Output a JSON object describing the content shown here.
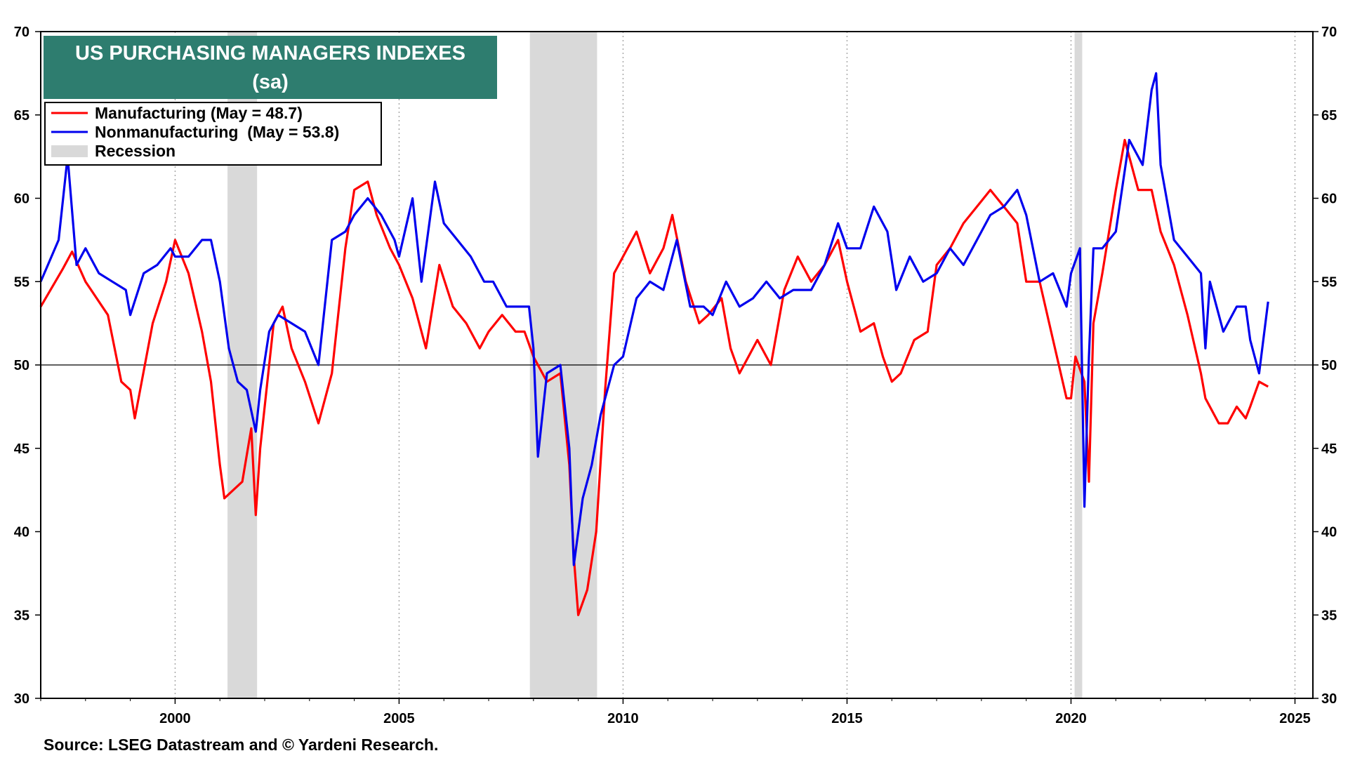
{
  "chart_data": {
    "type": "line",
    "title": "US PURCHASING MANAGERS INDEXES",
    "subtitle": "(sa)",
    "source": "Source: LSEG Datastream and © Yardeni Research.",
    "xlim": [
      1997.0,
      2025.4
    ],
    "ylim": [
      30,
      70
    ],
    "y_ticks": [
      30,
      35,
      40,
      45,
      50,
      55,
      60,
      65,
      70
    ],
    "y_tick_labels": [
      "30",
      "35",
      "40",
      "45",
      "50",
      "55",
      "60",
      "65",
      "70"
    ],
    "x_ticks": [
      2000,
      2005,
      2010,
      2015,
      2020,
      2025
    ],
    "x_tick_labels": [
      "2000",
      "2005",
      "2010",
      "2015",
      "2020",
      "2025"
    ],
    "reference_line": 50,
    "recessions": [
      [
        2001.17,
        2001.83
      ],
      [
        2007.92,
        2009.42
      ],
      [
        2020.08,
        2020.25
      ]
    ],
    "grid": "vertical dotted at x ticks",
    "legend_position": "top-left",
    "legend": {
      "recession_label": "Recession",
      "recession_color": "#d9d9d9"
    },
    "colors": {
      "title_bg": "#2e7d6f",
      "frame": "#000000"
    },
    "series": [
      {
        "name": "Manufacturing (May = 48.7)",
        "color": "#ff0000",
        "x": [
          1997.0,
          1997.5,
          1997.7,
          1998.0,
          1998.5,
          1998.8,
          1999.0,
          1999.1,
          1999.5,
          1999.8,
          2000.0,
          2000.3,
          2000.6,
          2000.8,
          2001.0,
          2001.1,
          2001.3,
          2001.5,
          2001.7,
          2001.8,
          2001.9,
          2002.2,
          2002.4,
          2002.6,
          2002.9,
          2003.2,
          2003.5,
          2003.8,
          2004.0,
          2004.3,
          2004.5,
          2004.8,
          2005.0,
          2005.3,
          2005.6,
          2005.9,
          2006.2,
          2006.5,
          2006.8,
          2007.0,
          2007.3,
          2007.6,
          2007.8,
          2008.0,
          2008.3,
          2008.6,
          2008.8,
          2008.9,
          2009.0,
          2009.2,
          2009.4,
          2009.6,
          2009.8,
          2010.0,
          2010.3,
          2010.6,
          2010.9,
          2011.1,
          2011.4,
          2011.7,
          2011.9,
          2012.2,
          2012.4,
          2012.6,
          2012.8,
          2013.0,
          2013.3,
          2013.6,
          2013.9,
          2014.2,
          2014.5,
          2014.8,
          2015.0,
          2015.3,
          2015.6,
          2015.8,
          2016.0,
          2016.2,
          2016.5,
          2016.8,
          2017.0,
          2017.3,
          2017.6,
          2017.9,
          2018.2,
          2018.5,
          2018.8,
          2019.0,
          2019.3,
          2019.6,
          2019.9,
          2020.0,
          2020.1,
          2020.3,
          2020.4,
          2020.5,
          2020.7,
          2021.0,
          2021.2,
          2021.5,
          2021.8,
          2022.0,
          2022.3,
          2022.6,
          2022.9,
          2023.0,
          2023.3,
          2023.5,
          2023.7,
          2023.9,
          2024.0,
          2024.2,
          2024.4
        ],
        "y": [
          53.5,
          55.8,
          56.8,
          55.0,
          53.0,
          49.0,
          48.5,
          46.8,
          52.5,
          55.0,
          57.5,
          55.5,
          52.0,
          49.0,
          44.0,
          42.0,
          42.5,
          43.0,
          46.2,
          41.0,
          45.0,
          52.5,
          53.5,
          51.0,
          49.0,
          46.5,
          49.5,
          57.0,
          60.5,
          61.0,
          59.0,
          57.0,
          56.0,
          54.0,
          51.0,
          56.0,
          53.5,
          52.5,
          51.0,
          52.0,
          53.0,
          52.0,
          52.0,
          50.5,
          49.0,
          49.5,
          44.0,
          38.5,
          35.0,
          36.5,
          40.0,
          48.5,
          55.5,
          56.5,
          58.0,
          55.5,
          57.0,
          59.0,
          55.0,
          52.5,
          53.0,
          54.0,
          51.0,
          49.5,
          50.5,
          51.5,
          50.0,
          54.5,
          56.5,
          55.0,
          56.0,
          57.5,
          55.0,
          52.0,
          52.5,
          50.5,
          49.0,
          49.5,
          51.5,
          52.0,
          56.0,
          57.0,
          58.5,
          59.5,
          60.5,
          59.5,
          58.5,
          55.0,
          55.0,
          51.5,
          48.0,
          48.0,
          50.5,
          49.0,
          43.0,
          52.5,
          55.5,
          60.5,
          63.5,
          60.5,
          60.5,
          58.0,
          56.0,
          53.0,
          49.5,
          48.0,
          46.5,
          46.5,
          47.5,
          46.8,
          47.5,
          49.0,
          48.7
        ]
      },
      {
        "name": "Nonmanufacturing  (May = 53.8)",
        "color": "#0000ee",
        "x": [
          1997.0,
          1997.4,
          1997.6,
          1997.8,
          1998.0,
          1998.3,
          1998.6,
          1998.9,
          1999.0,
          1999.3,
          1999.6,
          1999.9,
          2000.0,
          2000.3,
          2000.6,
          2000.8,
          2001.0,
          2001.2,
          2001.4,
          2001.6,
          2001.8,
          2001.9,
          2002.1,
          2002.3,
          2002.6,
          2002.9,
          2003.2,
          2003.5,
          2003.8,
          2004.0,
          2004.3,
          2004.6,
          2004.9,
          2005.0,
          2005.3,
          2005.5,
          2005.8,
          2006.0,
          2006.3,
          2006.6,
          2006.9,
          2007.1,
          2007.4,
          2007.7,
          2007.9,
          2008.0,
          2008.1,
          2008.3,
          2008.6,
          2008.8,
          2008.9,
          2009.1,
          2009.3,
          2009.5,
          2009.8,
          2010.0,
          2010.3,
          2010.6,
          2010.9,
          2011.2,
          2011.5,
          2011.8,
          2012.0,
          2012.3,
          2012.6,
          2012.9,
          2013.2,
          2013.5,
          2013.8,
          2014.2,
          2014.5,
          2014.8,
          2015.0,
          2015.3,
          2015.6,
          2015.9,
          2016.1,
          2016.4,
          2016.7,
          2017.0,
          2017.3,
          2017.6,
          2017.9,
          2018.2,
          2018.5,
          2018.8,
          2019.0,
          2019.3,
          2019.6,
          2019.9,
          2020.0,
          2020.2,
          2020.3,
          2020.4,
          2020.5,
          2020.7,
          2021.0,
          2021.3,
          2021.6,
          2021.8,
          2021.9,
          2022.0,
          2022.3,
          2022.6,
          2022.9,
          2023.0,
          2023.1,
          2023.4,
          2023.7,
          2023.9,
          2024.0,
          2024.2,
          2024.4
        ],
        "y": [
          55.0,
          57.5,
          62.5,
          56.0,
          57.0,
          55.5,
          55.0,
          54.5,
          53.0,
          55.5,
          56.0,
          57.0,
          56.5,
          56.5,
          57.5,
          57.5,
          55.0,
          51.0,
          49.0,
          48.5,
          46.0,
          48.5,
          52.0,
          53.0,
          52.5,
          52.0,
          50.0,
          57.5,
          58.0,
          59.0,
          60.0,
          59.0,
          57.5,
          56.5,
          60.0,
          55.0,
          61.0,
          58.5,
          57.5,
          56.5,
          55.0,
          55.0,
          53.5,
          53.5,
          53.5,
          51.0,
          44.5,
          49.5,
          50.0,
          45.0,
          38.0,
          42.0,
          44.0,
          47.0,
          50.0,
          50.5,
          54.0,
          55.0,
          54.5,
          57.5,
          53.5,
          53.5,
          53.0,
          55.0,
          53.5,
          54.0,
          55.0,
          54.0,
          54.5,
          54.5,
          56.0,
          58.5,
          57.0,
          57.0,
          59.5,
          58.0,
          54.5,
          56.5,
          55.0,
          55.5,
          57.0,
          56.0,
          57.5,
          59.0,
          59.5,
          60.5,
          59.0,
          55.0,
          55.5,
          53.5,
          55.5,
          57.0,
          41.5,
          50.5,
          57.0,
          57.0,
          58.0,
          63.5,
          62.0,
          66.5,
          67.5,
          62.0,
          57.5,
          56.5,
          55.5,
          51.0,
          55.0,
          52.0,
          53.5,
          53.5,
          51.5,
          49.5,
          53.8
        ]
      }
    ]
  }
}
